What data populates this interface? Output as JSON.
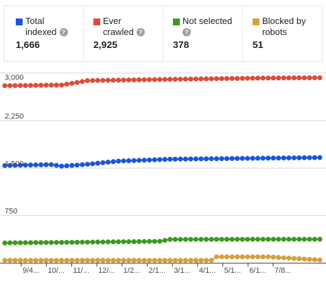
{
  "stats": [
    {
      "lines": [
        "Total",
        "indexed"
      ],
      "value": "1,666",
      "color": "#1a56db"
    },
    {
      "lines": [
        "Ever",
        "crawled"
      ],
      "value": "2,925",
      "color": "#dd4b39"
    },
    {
      "lines": [
        "Not selected",
        ""
      ],
      "value": "378",
      "color": "#3a9a1e"
    },
    {
      "lines": [
        "Blocked by",
        "robots"
      ],
      "value": "51",
      "color": "#d4a03a"
    }
  ],
  "chart_data": {
    "type": "line",
    "xlabel": "",
    "ylabel": "",
    "ylim": [
      0,
      3000
    ],
    "yticks": [
      3000,
      2250,
      1500,
      750
    ],
    "ytick_labels": [
      "3,000",
      "2,250",
      "1,500",
      "750"
    ],
    "xtick_labels": [
      "9/4...",
      "10/...",
      "11/...",
      "12/...",
      "1/2...",
      "2/1...",
      "3/1...",
      "4/1...",
      "5/1...",
      "6/1...",
      "7/8..."
    ],
    "grid": true,
    "legend": "top",
    "series": [
      {
        "name": "Ever crawled",
        "color": "#dd4b39",
        "segments": [
          [
            0,
            2800
          ],
          [
            11,
            2810
          ],
          [
            14,
            2850
          ],
          [
            16,
            2880
          ],
          [
            32,
            2900
          ],
          [
            50,
            2920
          ],
          [
            61,
            2925
          ]
        ]
      },
      {
        "name": "Total indexed",
        "color": "#1a56db",
        "segments": [
          [
            0,
            1540
          ],
          [
            9,
            1555
          ],
          [
            11,
            1530
          ],
          [
            16,
            1560
          ],
          [
            22,
            1610
          ],
          [
            32,
            1640
          ],
          [
            61,
            1666
          ]
        ]
      },
      {
        "name": "Not selected",
        "color": "#3a9a1e",
        "segments": [
          [
            0,
            320
          ],
          [
            14,
            330
          ],
          [
            30,
            345
          ],
          [
            32,
            375
          ],
          [
            61,
            378
          ]
        ]
      },
      {
        "name": "Blocked by robots",
        "color": "#d4a03a",
        "segments": [
          [
            0,
            45
          ],
          [
            40,
            45
          ],
          [
            41,
            100
          ],
          [
            51,
            100
          ],
          [
            55,
            80
          ],
          [
            61,
            51
          ]
        ]
      }
    ]
  }
}
